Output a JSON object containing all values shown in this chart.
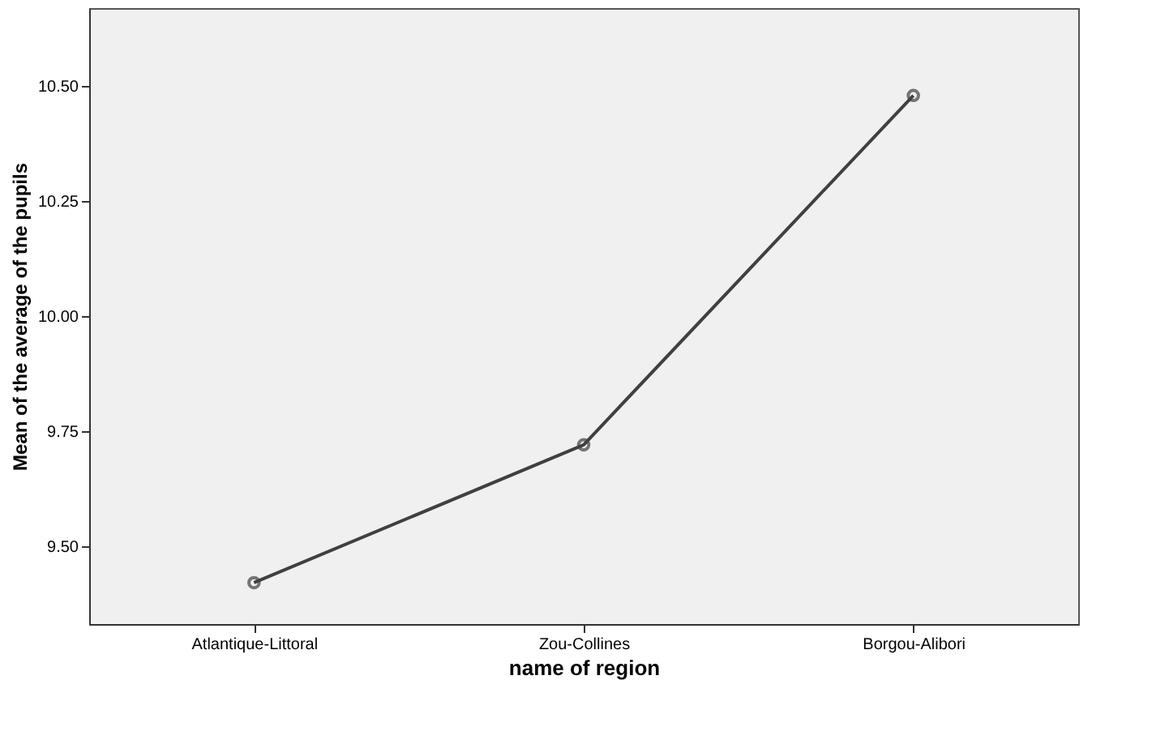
{
  "chart_data": {
    "type": "line",
    "categories": [
      "Atlantique-Littoral",
      "Zou-Collines",
      "Borgou-Alibori"
    ],
    "series": [
      {
        "color": "#404040",
        "values": [
          9.42,
          9.72,
          10.48
        ]
      }
    ],
    "xlabel": "name of region",
    "ylabel": "Mean of the average of the pupils",
    "ylim": [
      9.33,
      10.67
    ],
    "yticks": [
      {
        "value": 9.5,
        "label": "9.50"
      },
      {
        "value": 9.75,
        "label": "9.75"
      },
      {
        "value": 10.0,
        "label": "10.00"
      },
      {
        "value": 10.25,
        "label": "10.25"
      },
      {
        "value": 10.5,
        "label": "10.50"
      }
    ],
    "marker": "circle",
    "line_style": "solid",
    "grid": false
  }
}
